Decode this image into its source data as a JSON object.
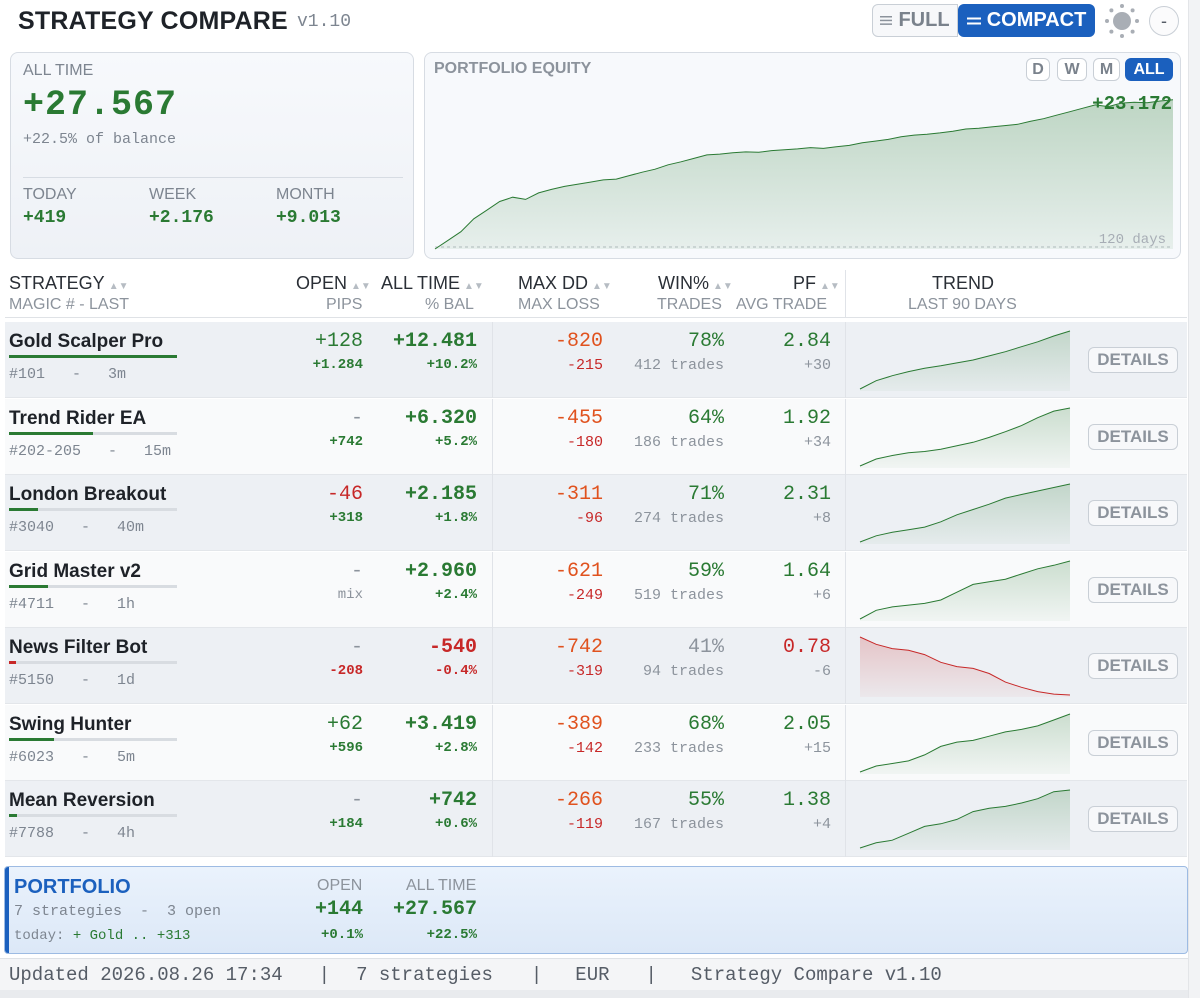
{
  "header": {
    "title": "STRATEGY COMPARE",
    "version": "v1.10",
    "full_label": "FULL",
    "compact_label": "COMPACT",
    "minimize_label": "-",
    "full_icon": "lines-icon",
    "compact_icon": "equals-icon",
    "theme_icon": "sun-icon"
  },
  "summary": {
    "all_time_label": "ALL TIME",
    "all_time_value": "+27.567",
    "balance_text": "+22.5% of balance",
    "today_label": "TODAY",
    "today_value": "+419",
    "week_label": "WEEK",
    "week_value": "+2.176",
    "month_label": "MONTH",
    "month_value": "+9.013"
  },
  "equity": {
    "title": "PORTFOLIO EQUITY",
    "ranges": [
      "D",
      "W",
      "M",
      "ALL"
    ],
    "active_range": "ALL",
    "last_value": "+23.172",
    "days_label": "120 days",
    "points": [
      0,
      2,
      4,
      7,
      9,
      11,
      12,
      11.5,
      13,
      13.8,
      14.5,
      15,
      15.5,
      16,
      16.2,
      17,
      17.8,
      18.5,
      19.5,
      20.2,
      21,
      21.8,
      22,
      22.3,
      22.5,
      22.4,
      22.8,
      23,
      23.2,
      23.5,
      23.3,
      23.7,
      24,
      24.6,
      25,
      25.4,
      26,
      26.4,
      26.6,
      26.9,
      27.3,
      27.8,
      28,
      28.3,
      28.6,
      28.9,
      29.6,
      30.2,
      31,
      31.8,
      32.6,
      33.4,
      33,
      33.8,
      34,
      33.9,
      34.3,
      34.6
    ],
    "y_max": 38,
    "color": "#2a7a33"
  },
  "columns": {
    "strategy": "STRATEGY",
    "strategy_sub": "MAGIC # - LAST",
    "open": "OPEN",
    "open_sub": "PIPS",
    "all_time": "ALL TIME",
    "all_time_sub": "% BAL",
    "max_dd": "MAX DD",
    "max_dd_sub": "MAX LOSS",
    "win": "WIN%",
    "win_sub": "TRADES",
    "pf": "PF",
    "pf_sub": "AVG TRADE",
    "trend": "TREND",
    "trend_sub": "LAST 90 DAYS",
    "sort_icon": "sort-arrows-icon"
  },
  "strategies": [
    {
      "name": "Gold Scalper Pro",
      "meta": "#101   -   3m",
      "bar_fraction": 1.0,
      "bar_color": "#2a7a33",
      "open": "+128",
      "open_pips": "+1.284",
      "all_time": "+12.481",
      "pct_bal": "+10.2%",
      "max_dd": "-820",
      "max_loss": "-215",
      "win": "78%",
      "trades": "412 trades",
      "pf": "2.84",
      "avg_trade": "+30",
      "details": "DETAILS",
      "trend": [
        0,
        2,
        3.2,
        4.2,
        5,
        5.6,
        6.3,
        7,
        8,
        9,
        10.2,
        11.4,
        12.8,
        14
      ],
      "trend_color": "#2a7a33",
      "open_sign": "pos",
      "all_sign": "pos",
      "win_sign": "pos",
      "pf_sign": "pos"
    },
    {
      "name": "Trend Rider EA",
      "meta": "#202-205   -   15m",
      "bar_fraction": 0.5,
      "bar_color": "#2a7a33",
      "open": "-",
      "open_pips": "+742",
      "all_time": "+6.320",
      "pct_bal": "+5.2%",
      "max_dd": "-455",
      "max_loss": "-180",
      "win": "64%",
      "trades": "186 trades",
      "pf": "1.92",
      "avg_trade": "+34",
      "details": "DETAILS",
      "trend": [
        0,
        1.6,
        2.4,
        3,
        3.3,
        3.8,
        4.6,
        5.4,
        6.5,
        7.8,
        9.2,
        11,
        12.5,
        13.2
      ],
      "trend_color": "#2a7a33",
      "open_sign": "muted",
      "all_sign": "pos",
      "win_sign": "pos",
      "pf_sign": "pos"
    },
    {
      "name": "London Breakout",
      "meta": "#3040   -   40m",
      "bar_fraction": 0.17,
      "bar_color": "#2a7a33",
      "open": "-46",
      "open_pips": "+318",
      "all_time": "+2.185",
      "pct_bal": "+1.8%",
      "max_dd": "-311",
      "max_loss": "-96",
      "win": "71%",
      "trades": "274 trades",
      "pf": "2.31",
      "avg_trade": "+8",
      "details": "DETAILS",
      "trend": [
        0,
        1.4,
        2.2,
        2.8,
        3.4,
        4.6,
        6.2,
        7.4,
        8.6,
        10,
        10.8,
        11.6,
        12.4,
        13.2
      ],
      "trend_color": "#2a7a33",
      "open_sign": "neg",
      "all_sign": "pos",
      "win_sign": "pos",
      "pf_sign": "pos"
    },
    {
      "name": "Grid Master v2",
      "meta": "#4711   -   1h",
      "bar_fraction": 0.23,
      "bar_color": "#2a7a33",
      "open": "-",
      "open_pips": "mix",
      "all_time": "+2.960",
      "pct_bal": "+2.4%",
      "max_dd": "-621",
      "max_loss": "-249",
      "win": "59%",
      "trades": "519 trades",
      "pf": "1.64",
      "avg_trade": "+6",
      "details": "DETAILS",
      "trend": [
        0,
        2,
        2.8,
        3.2,
        3.6,
        4.4,
        6.2,
        8,
        8.6,
        9.2,
        10.4,
        11.6,
        12.4,
        13.4
      ],
      "trend_color": "#2a7a33",
      "open_sign": "muted",
      "all_sign": "pos",
      "win_sign": "pos",
      "pf_sign": "pos"
    },
    {
      "name": "News Filter Bot",
      "meta": "#5150   -   1d",
      "bar_fraction": 0.04,
      "bar_color": "#c72828",
      "open": "-",
      "open_pips": "-208",
      "all_time": "-540",
      "pct_bal": "-0.4%",
      "max_dd": "-742",
      "max_loss": "-319",
      "win": "41%",
      "trades": "94 trades",
      "pf": "0.78",
      "avg_trade": "-6",
      "details": "DETAILS",
      "trend": [
        13.5,
        11.8,
        10.8,
        10.4,
        9.4,
        7.6,
        6.6,
        6.2,
        5,
        3,
        1.8,
        0.8,
        0.2,
        0
      ],
      "trend_color": "#c72828",
      "open_sign": "muted",
      "all_sign": "neg",
      "win_sign": "muted",
      "pf_sign": "neg"
    },
    {
      "name": "Swing Hunter",
      "meta": "#6023   -   5m",
      "bar_fraction": 0.27,
      "bar_color": "#2a7a33",
      "open": "+62",
      "open_pips": "+596",
      "all_time": "+3.419",
      "pct_bal": "+2.8%",
      "max_dd": "-389",
      "max_loss": "-142",
      "win": "68%",
      "trades": "233 trades",
      "pf": "2.05",
      "avg_trade": "+15",
      "details": "DETAILS",
      "trend": [
        0,
        1.4,
        2,
        2.6,
        4,
        6,
        7,
        7.4,
        8.4,
        9.4,
        10,
        10.8,
        12.2,
        13.6
      ],
      "trend_color": "#2a7a33",
      "open_sign": "pos",
      "all_sign": "pos",
      "win_sign": "pos",
      "pf_sign": "pos"
    },
    {
      "name": "Mean Reversion",
      "meta": "#7788   -   4h",
      "bar_fraction": 0.05,
      "bar_color": "#2a7a33",
      "open": "-",
      "open_pips": "+184",
      "all_time": "+742",
      "pct_bal": "+0.6%",
      "max_dd": "-266",
      "max_loss": "-119",
      "win": "55%",
      "trades": "167 trades",
      "pf": "1.38",
      "avg_trade": "+4",
      "details": "DETAILS",
      "trend": [
        0,
        1.2,
        1.8,
        3.4,
        5,
        5.6,
        6.6,
        8.4,
        9.2,
        9.6,
        10.4,
        11.4,
        13,
        13.4
      ],
      "trend_color": "#2a7a33",
      "open_sign": "muted",
      "all_sign": "pos",
      "win_sign": "pos",
      "pf_sign": "pos"
    }
  ],
  "portfolio": {
    "title": "PORTFOLIO",
    "sub": "7 strategies  -  3 open",
    "today_prefix": "today:",
    "today_best": "+ Gold .. +313",
    "open_label": "OPEN",
    "open_value": "+144",
    "open_pct": "+0.1%",
    "all_time_label": "ALL TIME",
    "all_time_value": "+27.567",
    "all_time_pct": "+22.5%"
  },
  "status": {
    "updated": "Updated 2026.08.26 17:34",
    "count": "7 strategies",
    "currency": "EUR",
    "app": "Strategy Compare v1.10",
    "sep": "|"
  }
}
